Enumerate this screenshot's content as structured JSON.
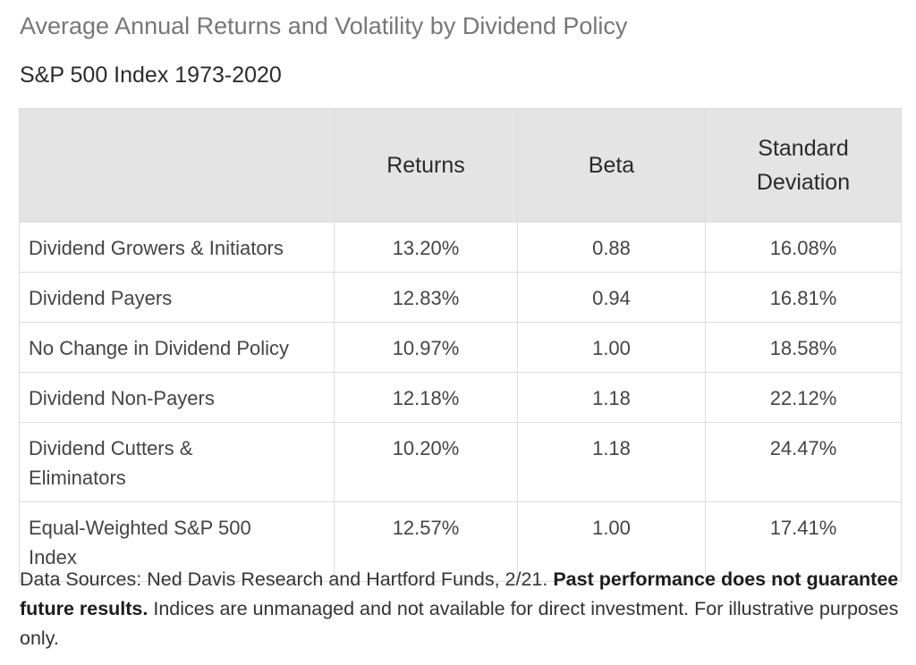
{
  "title": "Average Annual Returns and Volatility by Dividend Policy",
  "subtitle": "S&P 500 Index 1973-2020",
  "chart_data": {
    "type": "table",
    "title": "Average Annual Returns and Volatility by Dividend Policy",
    "subtitle": "S&P 500 Index 1973-2020",
    "columns": [
      "",
      "Returns",
      "Beta",
      "Standard Deviation"
    ],
    "rows": [
      {
        "label": "Dividend Growers & Initiators",
        "returns": "13.20%",
        "beta": "0.88",
        "std_dev": "16.08%"
      },
      {
        "label": "Dividend Payers",
        "returns": "12.83%",
        "beta": "0.94",
        "std_dev": "16.81%"
      },
      {
        "label": "No Change in Dividend Policy",
        "returns": "10.97%",
        "beta": "1.00",
        "std_dev": "18.58%"
      },
      {
        "label": "Dividend Non-Payers",
        "returns": "12.18%",
        "beta": "1.18",
        "std_dev": "22.12%"
      },
      {
        "label": "Dividend Cutters & Eliminators",
        "returns": "10.20%",
        "beta": "1.18",
        "std_dev": "24.47%"
      },
      {
        "label": "Equal-Weighted S&P 500 Index",
        "returns": "12.57%",
        "beta": "1.00",
        "std_dev": "17.41%"
      }
    ]
  },
  "header": {
    "returns": "Returns",
    "beta": "Beta",
    "std_dev": "Standard Deviation"
  },
  "footnote": {
    "sources": "Data Sources: Ned Davis Research and Hartford Funds, 2/21.",
    "disclaimer_bold": "Past performance does not guarantee future results.",
    "disclaimer": "Indices are unmanaged and not available for direct investment. For illustrative purposes only."
  }
}
